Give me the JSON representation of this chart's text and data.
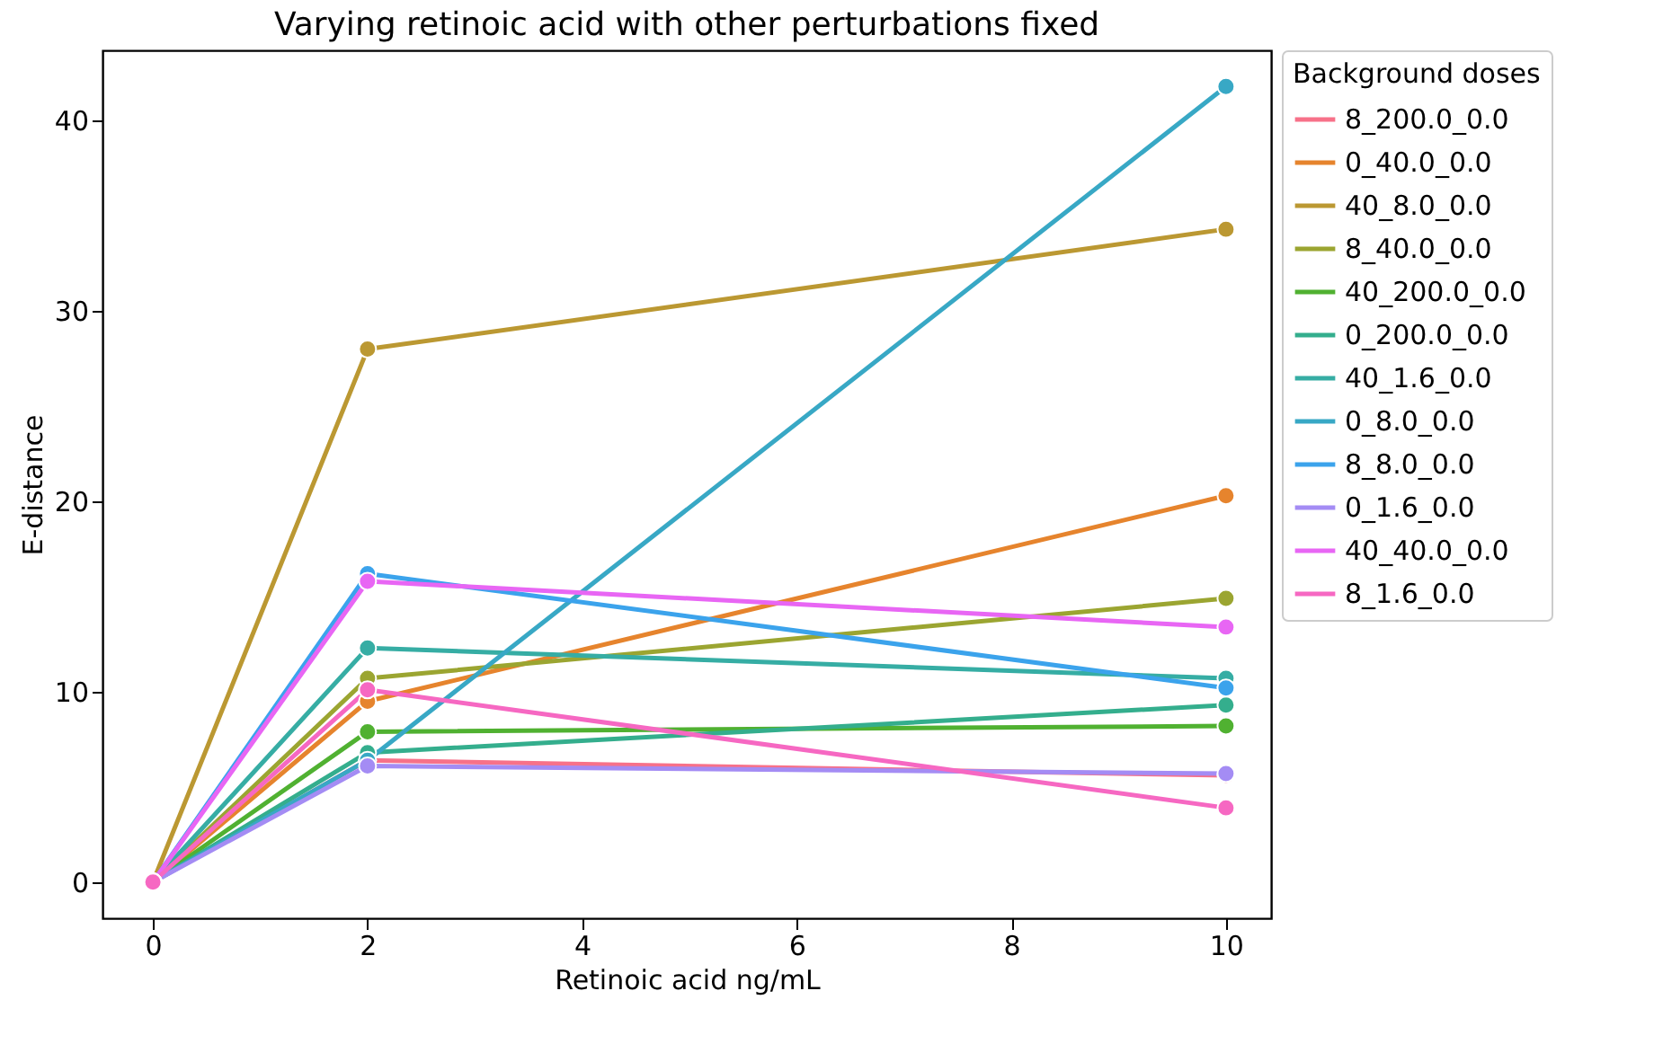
{
  "chart_data": {
    "type": "line",
    "title": "Varying retinoic acid with other perturbations fixed",
    "xlabel": "Retinoic acid ng/mL",
    "ylabel": "E-distance",
    "legend_title": "Background doses",
    "x": [
      0,
      2,
      10
    ],
    "series": [
      {
        "name": "8_200.0_0.0",
        "color": "#f77189",
        "values": [
          0,
          6.4,
          5.6
        ]
      },
      {
        "name": "0_40.0_0.0",
        "color": "#e6842d",
        "values": [
          0,
          9.5,
          20.3
        ]
      },
      {
        "name": "40_8.0_0.0",
        "color": "#bb9832",
        "values": [
          0,
          28.0,
          34.3
        ]
      },
      {
        "name": "8_40.0_0.0",
        "color": "#9ba531",
        "values": [
          0,
          10.7,
          14.9
        ]
      },
      {
        "name": "40_200.0_0.0",
        "color": "#50b131",
        "values": [
          0,
          7.9,
          8.2
        ]
      },
      {
        "name": "0_200.0_0.0",
        "color": "#34ae8d",
        "values": [
          0,
          6.8,
          9.3
        ]
      },
      {
        "name": "40_1.6_0.0",
        "color": "#36ada4",
        "values": [
          0,
          12.3,
          10.7
        ]
      },
      {
        "name": "0_8.0_0.0",
        "color": "#38a8c5",
        "values": [
          0,
          6.4,
          41.8
        ]
      },
      {
        "name": "8_8.0_0.0",
        "color": "#3ba3ec",
        "values": [
          0,
          16.2,
          10.2
        ]
      },
      {
        "name": "0_1.6_0.0",
        "color": "#a48cf4",
        "values": [
          0,
          6.1,
          5.7
        ]
      },
      {
        "name": "40_40.0_0.0",
        "color": "#e866f4",
        "values": [
          0,
          15.8,
          13.4
        ]
      },
      {
        "name": "8_1.6_0.0",
        "color": "#f668c2",
        "values": [
          0,
          10.1,
          3.9
        ]
      }
    ],
    "xlim": [
      -0.47,
      10.42
    ],
    "xticks": [
      0,
      2,
      4,
      6,
      8,
      10
    ],
    "ylim": [
      -1.9,
      43.7
    ],
    "yticks": [
      0,
      10,
      20,
      30,
      40
    ],
    "grid": false,
    "legend": "top right",
    "marker": "circle",
    "line_style": "solid"
  }
}
